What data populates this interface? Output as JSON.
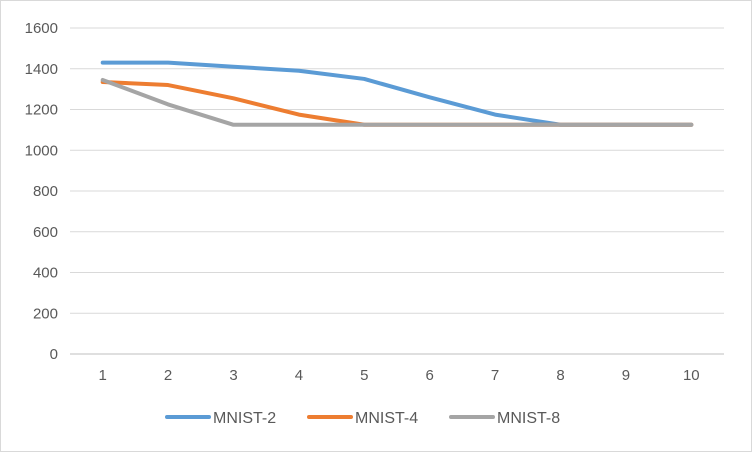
{
  "chart_data": {
    "type": "line",
    "categories": [
      "1",
      "2",
      "3",
      "4",
      "5",
      "6",
      "7",
      "8",
      "9",
      "10"
    ],
    "x": [
      1,
      2,
      3,
      4,
      5,
      6,
      7,
      8,
      9,
      10
    ],
    "ylim": [
      0,
      1600
    ],
    "yticks": [
      "0",
      "200",
      "400",
      "600",
      "800",
      "1000",
      "1200",
      "1400",
      "1600"
    ],
    "grid": true,
    "legend_position": "bottom",
    "series": [
      {
        "name": "MNIST-2",
        "color": "#5b9bd5",
        "values": [
          1430,
          1430,
          1410,
          1390,
          1350,
          1260,
          1175,
          1125,
          1125,
          1125
        ]
      },
      {
        "name": "MNIST-4",
        "color": "#ed7d31",
        "values": [
          1335,
          1320,
          1255,
          1175,
          1125,
          1125,
          1125,
          1125,
          1125,
          1125
        ]
      },
      {
        "name": "MNIST-8",
        "color": "#a5a5a5",
        "values": [
          1345,
          1225,
          1125,
          1125,
          1125,
          1125,
          1125,
          1125,
          1125,
          1125
        ]
      }
    ]
  }
}
